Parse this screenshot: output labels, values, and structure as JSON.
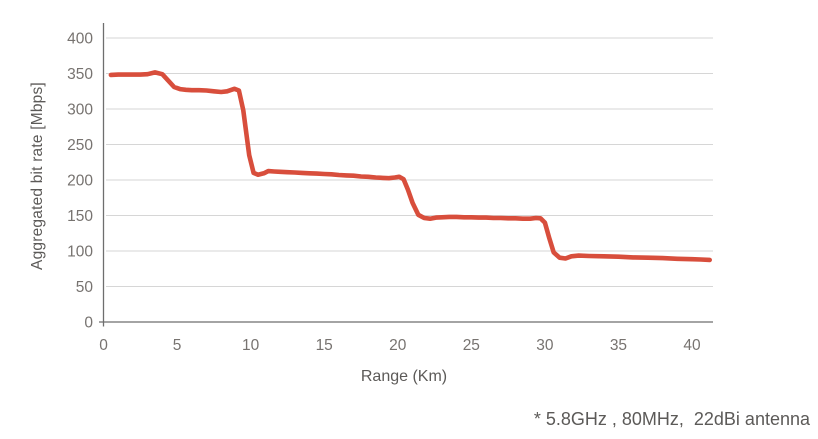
{
  "chart_data": {
    "type": "line",
    "title": "",
    "xlabel": "Range (Km)",
    "ylabel": "Aggregated bit rate [Mbps]",
    "annotation": "* 5.8GHz , 80MHz,  22dBi antenna",
    "xlim": [
      0,
      41.6
    ],
    "ylim": [
      0,
      400
    ],
    "xticks": [
      0,
      5,
      10,
      15,
      20,
      25,
      30,
      35,
      40
    ],
    "yticks": [
      0,
      50,
      100,
      150,
      200,
      250,
      300,
      350,
      400
    ],
    "grid": "horizontal-only",
    "legend": "none",
    "series": [
      {
        "name": "aggregated-bit-rate",
        "color": "#d84e3c",
        "points": [
          [
            0.5,
            348
          ],
          [
            1,
            348.5
          ],
          [
            1.5,
            348.5
          ],
          [
            2,
            348.5
          ],
          [
            2.5,
            348.5
          ],
          [
            3,
            349
          ],
          [
            3.5,
            351.5
          ],
          [
            4,
            349
          ],
          [
            4.4,
            340
          ],
          [
            4.8,
            331
          ],
          [
            5.2,
            328
          ],
          [
            5.6,
            327
          ],
          [
            6,
            326.5
          ],
          [
            6.5,
            326.5
          ],
          [
            7,
            326
          ],
          [
            7.5,
            325
          ],
          [
            8,
            324
          ],
          [
            8.4,
            325
          ],
          [
            8.9,
            328.5
          ],
          [
            9.2,
            326
          ],
          [
            9.5,
            298
          ],
          [
            9.9,
            235
          ],
          [
            10.2,
            210
          ],
          [
            10.5,
            207.5
          ],
          [
            10.9,
            209.5
          ],
          [
            11.2,
            212.5
          ],
          [
            11.6,
            212
          ],
          [
            12,
            211.5
          ],
          [
            12.5,
            211
          ],
          [
            13,
            210.5
          ],
          [
            13.5,
            210
          ],
          [
            14,
            209.5
          ],
          [
            14.5,
            209
          ],
          [
            15,
            208.5
          ],
          [
            15.5,
            208
          ],
          [
            16,
            207
          ],
          [
            16.5,
            206.5
          ],
          [
            17,
            206
          ],
          [
            17.5,
            205
          ],
          [
            18,
            204.5
          ],
          [
            18.5,
            203.5
          ],
          [
            19,
            203
          ],
          [
            19.4,
            202.5
          ],
          [
            19.8,
            203.5
          ],
          [
            20.1,
            204.5
          ],
          [
            20.4,
            201
          ],
          [
            20.7,
            186
          ],
          [
            21,
            168
          ],
          [
            21.4,
            151
          ],
          [
            21.8,
            146.5
          ],
          [
            22.2,
            145.5
          ],
          [
            22.6,
            147
          ],
          [
            23,
            147.5
          ],
          [
            23.5,
            148
          ],
          [
            24,
            148
          ],
          [
            24.5,
            147.5
          ],
          [
            25,
            147.5
          ],
          [
            25.5,
            147
          ],
          [
            26,
            147
          ],
          [
            26.5,
            146.5
          ],
          [
            27,
            146.5
          ],
          [
            27.5,
            146
          ],
          [
            28,
            146
          ],
          [
            28.5,
            145.5
          ],
          [
            29,
            145.5
          ],
          [
            29.4,
            146.5
          ],
          [
            29.7,
            146
          ],
          [
            30,
            140
          ],
          [
            30.3,
            118
          ],
          [
            30.6,
            98
          ],
          [
            31,
            90.5
          ],
          [
            31.4,
            89.5
          ],
          [
            31.8,
            92.5
          ],
          [
            32.3,
            93.5
          ],
          [
            33,
            93
          ],
          [
            34,
            92.5
          ],
          [
            35,
            92
          ],
          [
            36,
            91
          ],
          [
            37,
            90.5
          ],
          [
            38,
            90
          ],
          [
            39,
            89
          ],
          [
            40,
            88.5
          ],
          [
            40.6,
            88
          ],
          [
            41.2,
            87.5
          ]
        ]
      }
    ]
  },
  "colors": {
    "background": "#ffffff",
    "gridline": "#d6d6d6",
    "axis": "#6e6e6e",
    "tick_text": "#777370",
    "label_text": "#5c5a58",
    "line": "#d84e3c"
  }
}
